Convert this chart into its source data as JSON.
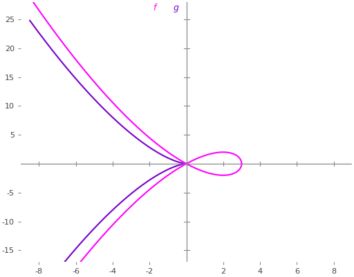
{
  "title": "",
  "f_label": "f",
  "g_label": "g",
  "f_color": "#ff00ff",
  "g_color": "#7700cc",
  "xlim": [
    -9,
    9
  ],
  "ylim": [
    -17,
    28
  ],
  "xticks": [
    -8,
    -6,
    -4,
    -2,
    2,
    4,
    6,
    8
  ],
  "yticks": [
    -15,
    -10,
    -5,
    5,
    10,
    15,
    20,
    25
  ],
  "background_color": "#ffffff",
  "axis_color": "#888888",
  "figsize": [
    5.12,
    4.01
  ],
  "dpi": 100
}
